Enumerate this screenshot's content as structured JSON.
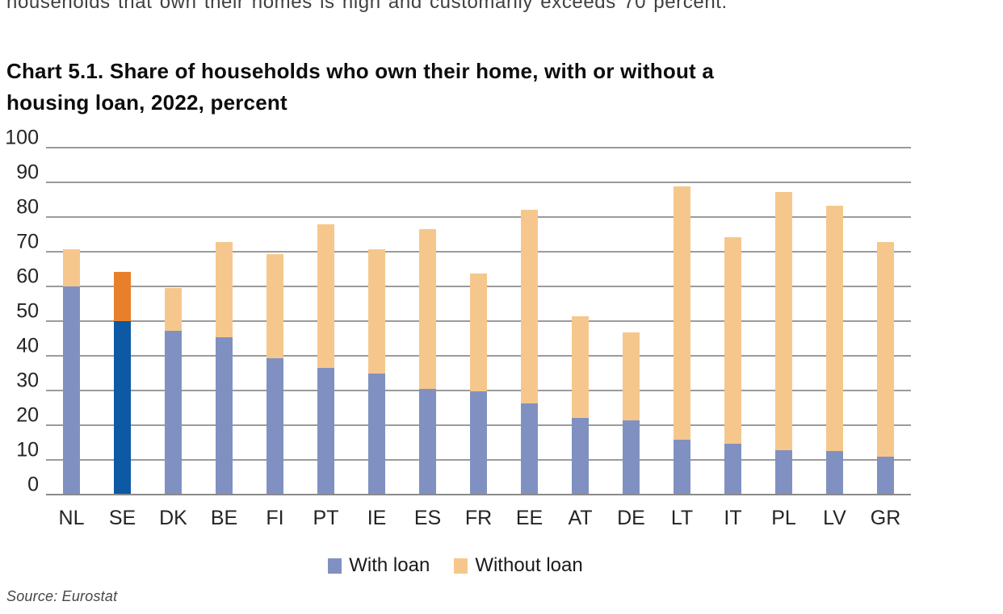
{
  "page": {
    "top_cropped_text": "households that own their homes is high and customarily exceeds 70 percent.",
    "source": "Source: Eurostat"
  },
  "title": {
    "line1": "Chart 5.1. Share of households who own their home, with or without a",
    "line2": "housing loan, 2022, percent"
  },
  "chart_data": {
    "type": "bar",
    "stacked": true,
    "title": "Chart 5.1. Share of households who own their home, with or without a housing loan, 2022, percent",
    "xlabel": "",
    "ylabel": "",
    "ylim": [
      0,
      100
    ],
    "yticks": [
      0,
      10,
      20,
      30,
      40,
      50,
      60,
      70,
      80,
      90,
      100
    ],
    "grid": true,
    "legend_position": "bottom",
    "categories": [
      "NL",
      "SE",
      "DK",
      "BE",
      "FI",
      "PT",
      "IE",
      "ES",
      "FR",
      "EE",
      "AT",
      "DE",
      "LT",
      "IT",
      "PL",
      "LV",
      "GR"
    ],
    "series": [
      {
        "name": "With loan",
        "values": [
          60.0,
          50.1,
          47.2,
          45.3,
          39.3,
          36.4,
          35.0,
          30.5,
          29.8,
          26.3,
          22.0,
          21.4,
          15.9,
          14.7,
          12.7,
          12.6,
          11.0
        ],
        "color": "#8091C1",
        "highlight_color": "#0D59A3"
      },
      {
        "name": "Without loan",
        "values": [
          10.7,
          14.1,
          12.3,
          27.5,
          30.1,
          41.4,
          35.7,
          46.0,
          33.9,
          55.7,
          29.5,
          25.3,
          72.9,
          59.6,
          74.6,
          70.7,
          61.9
        ],
        "color": "#F6C78C",
        "highlight_color": "#E8802B"
      }
    ],
    "highlight_category": "SE",
    "colors": {
      "gridline": "#9B9B9B",
      "axis": "#8A8A8A",
      "text": "#242424"
    }
  }
}
